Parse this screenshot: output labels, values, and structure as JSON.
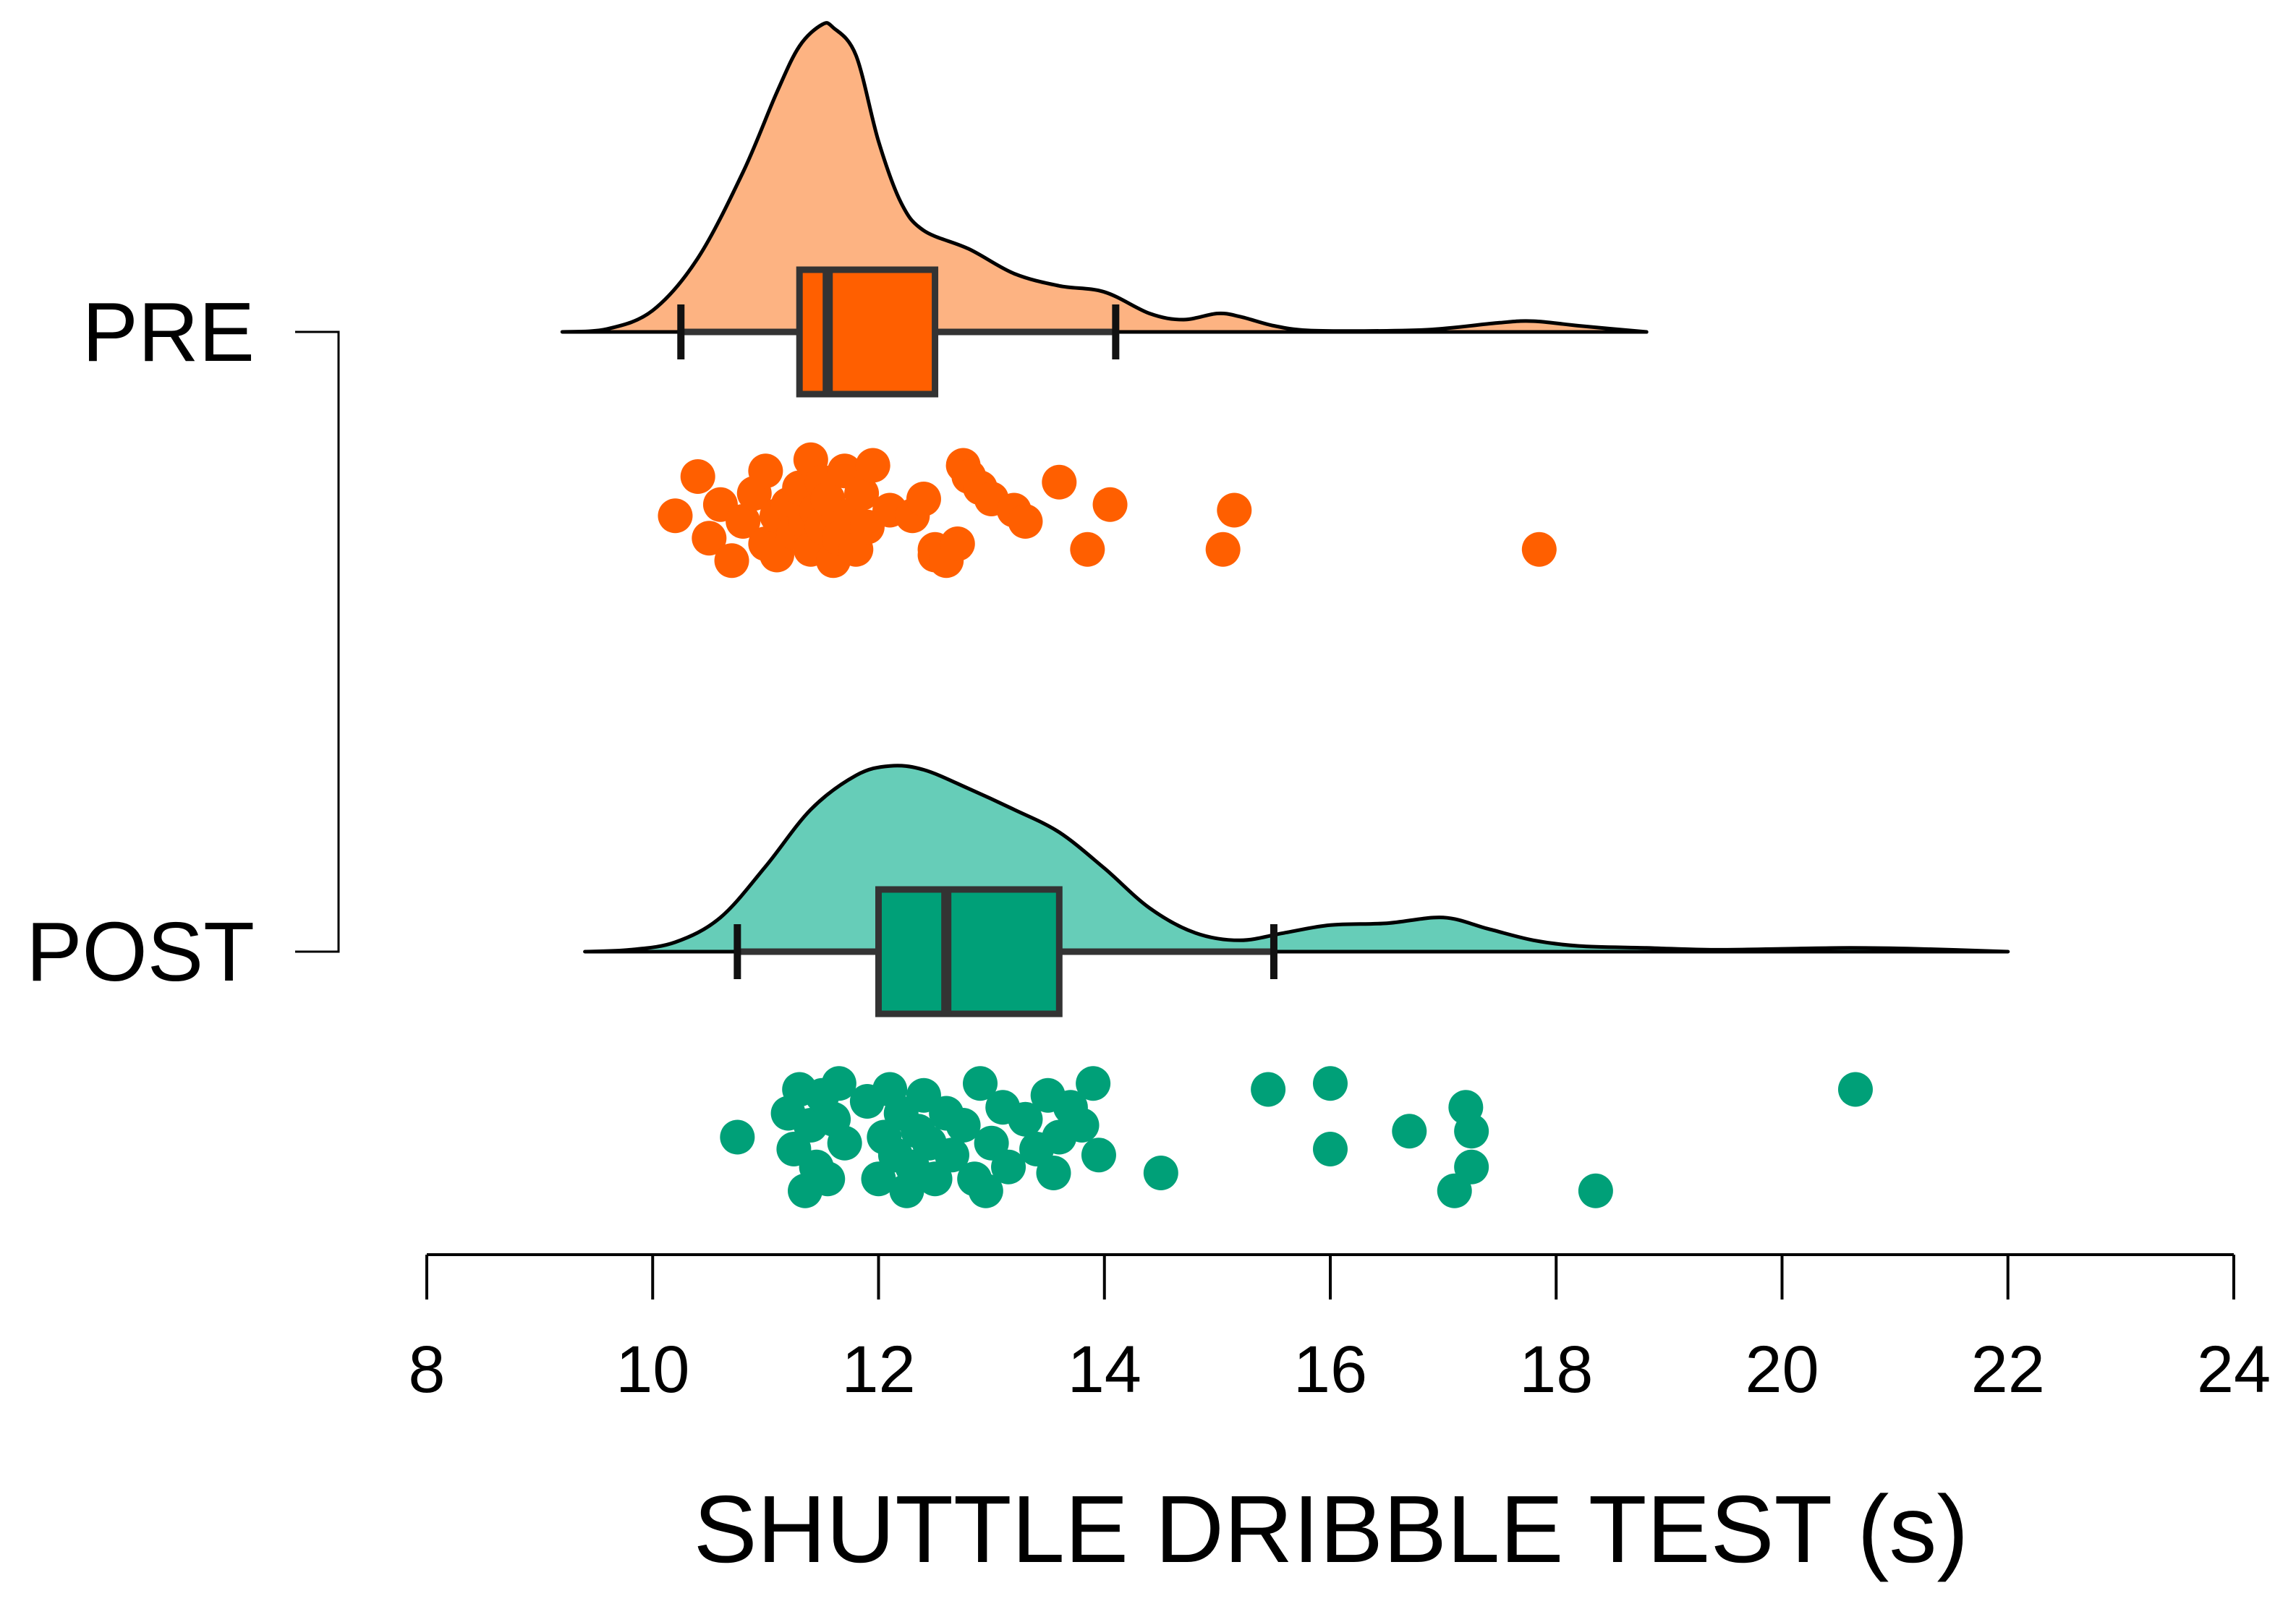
{
  "chart_data": {
    "type": "raincloud",
    "xlabel": "SHUTTLE DRIBBLE TEST (s)",
    "xlim": [
      8,
      24
    ],
    "xticks": [
      8,
      10,
      12,
      14,
      16,
      18,
      20,
      22,
      24
    ],
    "groups": [
      {
        "name": "PRE",
        "fill_color": "#FDB382",
        "box_color": "#FF5F00",
        "point_color": "#FF5F00",
        "density": {
          "x": [
            9.2,
            9.6,
            10.0,
            10.4,
            10.8,
            11.1,
            11.3,
            11.5,
            11.6,
            11.8,
            12.0,
            12.2,
            12.4,
            12.8,
            13.2,
            13.6,
            14.0,
            14.4,
            14.7,
            15.0,
            15.2,
            15.5,
            15.8,
            16.3,
            16.9,
            17.5,
            17.8,
            18.2,
            18.8
          ],
          "y": [
            0.0,
            0.01,
            0.07,
            0.24,
            0.52,
            0.78,
            0.93,
            1.0,
            0.99,
            0.9,
            0.62,
            0.42,
            0.33,
            0.27,
            0.19,
            0.15,
            0.13,
            0.06,
            0.04,
            0.06,
            0.05,
            0.02,
            0.005,
            0.003,
            0.008,
            0.03,
            0.035,
            0.02,
            0.0
          ]
        },
        "box": {
          "whisker_low": 10.25,
          "q1": 11.3,
          "median": 11.55,
          "q3": 12.5,
          "whisker_high": 14.1
        },
        "points": [
          [
            10.2,
            0.55
          ],
          [
            10.4,
            0.2
          ],
          [
            10.5,
            0.75
          ],
          [
            10.6,
            0.45
          ],
          [
            10.7,
            0.95
          ],
          [
            10.8,
            0.6
          ],
          [
            10.9,
            0.35
          ],
          [
            11.0,
            0.8
          ],
          [
            11.0,
            0.15
          ],
          [
            11.1,
            0.55
          ],
          [
            11.1,
            0.9
          ],
          [
            11.2,
            0.45
          ],
          [
            11.25,
            0.7
          ],
          [
            11.3,
            0.3
          ],
          [
            11.35,
            0.6
          ],
          [
            11.4,
            0.05
          ],
          [
            11.4,
            0.85
          ],
          [
            11.45,
            0.5
          ],
          [
            11.5,
            0.25
          ],
          [
            11.5,
            0.65
          ],
          [
            11.55,
            0.4
          ],
          [
            11.6,
            0.95
          ],
          [
            11.65,
            0.75
          ],
          [
            11.7,
            0.15
          ],
          [
            11.75,
            0.55
          ],
          [
            11.8,
            0.85
          ],
          [
            11.85,
            0.35
          ],
          [
            11.9,
            0.65
          ],
          [
            11.95,
            0.1
          ],
          [
            12.1,
            0.5
          ],
          [
            12.3,
            0.55
          ],
          [
            12.4,
            0.4
          ],
          [
            12.5,
            0.85
          ],
          [
            12.5,
            0.9
          ],
          [
            12.6,
            0.95
          ],
          [
            12.7,
            0.8
          ],
          [
            12.75,
            0.1
          ],
          [
            12.8,
            0.2
          ],
          [
            12.9,
            0.3
          ],
          [
            13.0,
            0.4
          ],
          [
            13.2,
            0.5
          ],
          [
            13.3,
            0.6
          ],
          [
            13.6,
            0.25
          ],
          [
            13.85,
            0.85
          ],
          [
            14.05,
            0.45
          ],
          [
            15.05,
            0.85
          ],
          [
            15.15,
            0.5
          ],
          [
            17.85,
            0.85
          ]
        ]
      },
      {
        "name": "POST",
        "fill_color": "#66CDB8",
        "box_color": "#00A078",
        "point_color": "#00A078",
        "density": {
          "x": [
            9.4,
            9.8,
            10.2,
            10.6,
            11.0,
            11.4,
            11.8,
            12.1,
            12.4,
            12.8,
            13.2,
            13.6,
            14.0,
            14.4,
            14.8,
            15.2,
            15.6,
            16.0,
            16.5,
            17.0,
            17.4,
            17.8,
            18.2,
            18.8,
            19.4,
            20.0,
            20.6,
            21.2,
            22.0
          ],
          "y": [
            0.0,
            0.01,
            0.05,
            0.18,
            0.45,
            0.75,
            0.93,
            0.98,
            0.96,
            0.86,
            0.75,
            0.63,
            0.44,
            0.23,
            0.1,
            0.06,
            0.1,
            0.14,
            0.15,
            0.18,
            0.12,
            0.06,
            0.03,
            0.02,
            0.01,
            0.015,
            0.02,
            0.015,
            0.0
          ]
        },
        "box": {
          "whisker_low": 10.75,
          "q1": 12.0,
          "median": 12.6,
          "q3": 13.6,
          "whisker_high": 15.5
        },
        "points": [
          [
            10.75,
            0.5
          ],
          [
            11.2,
            0.3
          ],
          [
            11.25,
            0.6
          ],
          [
            11.3,
            0.1
          ],
          [
            11.35,
            0.95
          ],
          [
            11.4,
            0.4
          ],
          [
            11.45,
            0.75
          ],
          [
            11.5,
            0.15
          ],
          [
            11.55,
            0.85
          ],
          [
            11.6,
            0.35
          ],
          [
            11.65,
            0.05
          ],
          [
            11.7,
            0.55
          ],
          [
            11.9,
            0.2
          ],
          [
            12.0,
            0.85
          ],
          [
            12.05,
            0.5
          ],
          [
            12.1,
            0.1
          ],
          [
            12.15,
            0.65
          ],
          [
            12.2,
            0.3
          ],
          [
            12.25,
            0.95
          ],
          [
            12.3,
            0.75
          ],
          [
            12.35,
            0.45
          ],
          [
            12.4,
            0.15
          ],
          [
            12.45,
            0.55
          ],
          [
            12.5,
            0.85
          ],
          [
            12.6,
            0.3
          ],
          [
            12.65,
            0.65
          ],
          [
            12.75,
            0.4
          ],
          [
            12.85,
            0.85
          ],
          [
            12.9,
            0.05
          ],
          [
            12.95,
            0.95
          ],
          [
            13.0,
            0.55
          ],
          [
            13.1,
            0.25
          ],
          [
            13.15,
            0.75
          ],
          [
            13.3,
            0.35
          ],
          [
            13.4,
            0.6
          ],
          [
            13.5,
            0.15
          ],
          [
            13.55,
            0.8
          ],
          [
            13.6,
            0.5
          ],
          [
            13.7,
            0.25
          ],
          [
            13.8,
            0.4
          ],
          [
            13.9,
            0.05
          ],
          [
            13.95,
            0.65
          ],
          [
            14.5,
            0.8
          ],
          [
            15.45,
            0.1
          ],
          [
            16.0,
            0.6
          ],
          [
            16.0,
            0.05
          ],
          [
            16.7,
            0.45
          ],
          [
            17.1,
            0.95
          ],
          [
            17.2,
            0.25
          ],
          [
            17.25,
            0.75
          ],
          [
            17.25,
            0.45
          ],
          [
            18.35,
            0.95
          ],
          [
            20.65,
            0.1
          ]
        ]
      }
    ]
  }
}
